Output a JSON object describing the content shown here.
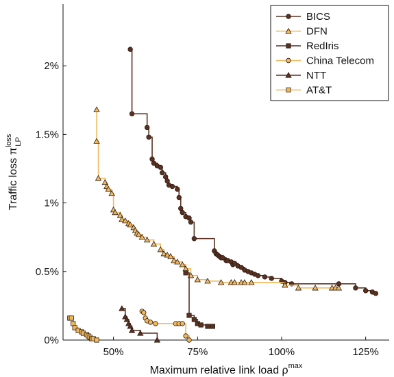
{
  "chart_data": {
    "type": "line",
    "xlabel": "Maximum relative link load ρ",
    "xlabel_sup": "max",
    "ylabel": "Traffic loss π",
    "ylabel_sub": "LP",
    "ylabel_sup": "loss",
    "xlim": [
      35,
      132
    ],
    "ylim": [
      0,
      2.45
    ],
    "xticks": [
      50,
      75,
      100,
      125
    ],
    "xtick_labels": [
      "50%",
      "75%",
      "100%",
      "125%"
    ],
    "yticks": [
      0,
      0.5,
      1,
      1.5,
      2
    ],
    "ytick_labels": [
      "0%",
      "0.5%",
      "1%",
      "1.5%",
      "2%"
    ],
    "grid": false,
    "legend_position": "top-right",
    "series": [
      {
        "name": "BICS",
        "color": "#5a3121",
        "marker": "circle",
        "points": [
          [
            55,
            2.12
          ],
          [
            55.5,
            1.65
          ],
          [
            60,
            1.55
          ],
          [
            60.5,
            1.48
          ],
          [
            61.5,
            1.32
          ],
          [
            62,
            1.29
          ],
          [
            63,
            1.27
          ],
          [
            64,
            1.26
          ],
          [
            64.5,
            1.22
          ],
          [
            65.5,
            1.19
          ],
          [
            66,
            1.16
          ],
          [
            66.5,
            1.13
          ],
          [
            67.5,
            1.12
          ],
          [
            69,
            1.1
          ],
          [
            69.5,
            1.04
          ],
          [
            70,
            0.96
          ],
          [
            70.5,
            0.93
          ],
          [
            71.5,
            0.9
          ],
          [
            72.5,
            0.89
          ],
          [
            73,
            0.86
          ],
          [
            74,
            0.74
          ],
          [
            80,
            0.65
          ],
          [
            80.5,
            0.63
          ],
          [
            81,
            0.62
          ],
          [
            81.5,
            0.61
          ],
          [
            82,
            0.6
          ],
          [
            82.5,
            0.6
          ],
          [
            83.5,
            0.58
          ],
          [
            84,
            0.58
          ],
          [
            85,
            0.57
          ],
          [
            85.5,
            0.55
          ],
          [
            86,
            0.56
          ],
          [
            87,
            0.54
          ],
          [
            88,
            0.53
          ],
          [
            89,
            0.51
          ],
          [
            90,
            0.5
          ],
          [
            91,
            0.49
          ],
          [
            92,
            0.48
          ],
          [
            93,
            0.47
          ],
          [
            95,
            0.46
          ],
          [
            97,
            0.45
          ],
          [
            100,
            0.43
          ],
          [
            101,
            0.42
          ],
          [
            103,
            0.41
          ],
          [
            117,
            0.41
          ],
          [
            122,
            0.38
          ],
          [
            125,
            0.36
          ],
          [
            127,
            0.35
          ],
          [
            128,
            0.34
          ]
        ]
      },
      {
        "name": "DFN",
        "color": "#f0b85e",
        "marker": "triangle",
        "points": [
          [
            45,
            1.68
          ],
          [
            45,
            1.45
          ],
          [
            45.5,
            1.18
          ],
          [
            47.5,
            1.15
          ],
          [
            48,
            1.12
          ],
          [
            48.5,
            1.1
          ],
          [
            49.5,
            1.07
          ],
          [
            50,
            0.95
          ],
          [
            50.5,
            0.93
          ],
          [
            52,
            0.91
          ],
          [
            52.5,
            0.88
          ],
          [
            53.5,
            0.87
          ],
          [
            54.5,
            0.85
          ],
          [
            55,
            0.84
          ],
          [
            56,
            0.82
          ],
          [
            56.5,
            0.8
          ],
          [
            57,
            0.78
          ],
          [
            57.5,
            0.77
          ],
          [
            58.5,
            0.75
          ],
          [
            60,
            0.73
          ],
          [
            62,
            0.7
          ],
          [
            64,
            0.66
          ],
          [
            65,
            0.63
          ],
          [
            66,
            0.62
          ],
          [
            67,
            0.61
          ],
          [
            68,
            0.58
          ],
          [
            69,
            0.57
          ],
          [
            70.5,
            0.55
          ],
          [
            71.5,
            0.52
          ],
          [
            73,
            0.47
          ],
          [
            75,
            0.44
          ],
          [
            78,
            0.43
          ],
          [
            82,
            0.42
          ],
          [
            85,
            0.42
          ],
          [
            86,
            0.42
          ],
          [
            88,
            0.42
          ],
          [
            89,
            0.42
          ],
          [
            91,
            0.42
          ],
          [
            101,
            0.4
          ],
          [
            105,
            0.38
          ],
          [
            110,
            0.38
          ],
          [
            115,
            0.38
          ],
          [
            116,
            0.38
          ],
          [
            117,
            0.38
          ]
        ]
      },
      {
        "name": "RedIris",
        "color": "#5a3121",
        "marker": "square",
        "points": [
          [
            71.5,
            0.49
          ],
          [
            72.5,
            0.18
          ],
          [
            74,
            0.15
          ],
          [
            75,
            0.12
          ],
          [
            76,
            0.11
          ],
          [
            78,
            0.1
          ],
          [
            79.5,
            0.1
          ]
        ]
      },
      {
        "name": "China Telecom",
        "color": "#f0b85e",
        "marker": "circle",
        "points": [
          [
            58.5,
            0.21
          ],
          [
            59,
            0.2
          ],
          [
            59.5,
            0.16
          ],
          [
            60,
            0.14
          ],
          [
            61,
            0.13
          ],
          [
            62.5,
            0.12
          ],
          [
            68.5,
            0.12
          ],
          [
            69.5,
            0.12
          ],
          [
            70.5,
            0.12
          ],
          [
            71.5,
            0.03
          ],
          [
            72.5,
            0.0
          ]
        ]
      },
      {
        "name": "NTT",
        "color": "#5a3121",
        "marker": "triangle",
        "points": [
          [
            52.5,
            0.23
          ],
          [
            53.5,
            0.17
          ],
          [
            54,
            0.15
          ],
          [
            54.5,
            0.12
          ],
          [
            55,
            0.1
          ],
          [
            55.5,
            0.07
          ],
          [
            58,
            0.05
          ],
          [
            63,
            0.0
          ]
        ]
      },
      {
        "name": "AT&T",
        "color": "#f0b85e",
        "marker": "square",
        "points": [
          [
            37,
            0.16
          ],
          [
            37.5,
            0.16
          ],
          [
            38,
            0.12
          ],
          [
            38.5,
            0.09
          ],
          [
            39.5,
            0.07
          ],
          [
            40.5,
            0.06
          ],
          [
            41,
            0.05
          ],
          [
            42,
            0.04
          ],
          [
            42.5,
            0.03
          ],
          [
            43,
            0.02
          ],
          [
            43.5,
            0.01
          ],
          [
            44,
            0.01
          ],
          [
            45,
            0.0
          ]
        ]
      }
    ]
  }
}
